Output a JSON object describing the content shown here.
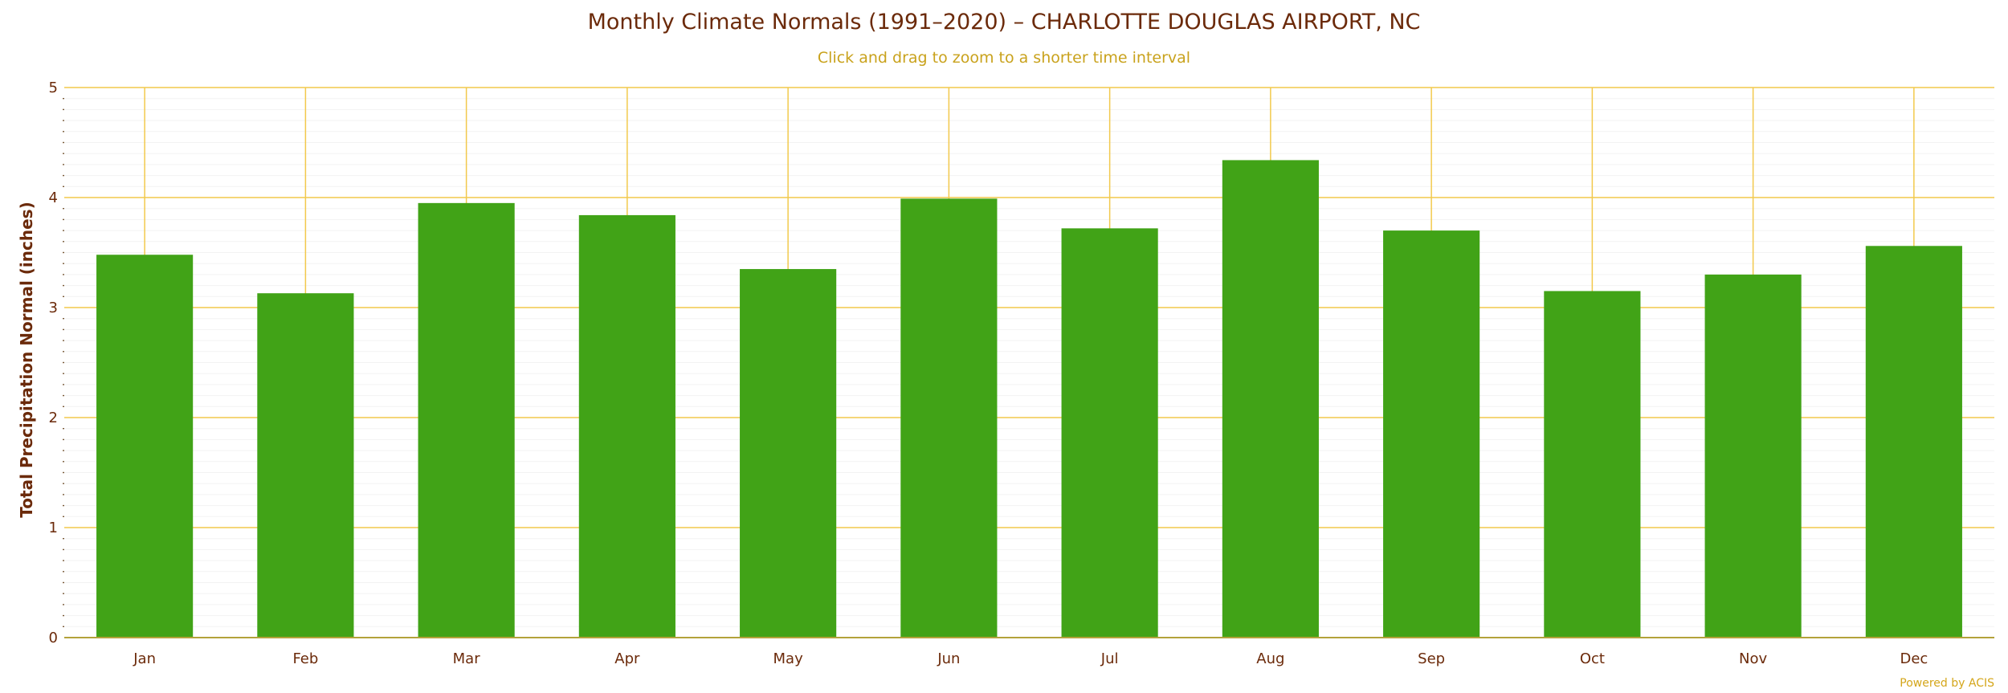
{
  "chart_data": {
    "type": "bar",
    "title": "Monthly Climate Normals (1991–2020) – CHARLOTTE DOUGLAS AIRPORT, NC",
    "subtitle": "Click and drag to zoom to a shorter time interval",
    "xlabel": "",
    "ylabel": "Total Precipitation Normal (inches)",
    "categories": [
      "Jan",
      "Feb",
      "Mar",
      "Apr",
      "May",
      "Jun",
      "Jul",
      "Aug",
      "Sep",
      "Oct",
      "Nov",
      "Dec"
    ],
    "values": [
      3.48,
      3.13,
      3.95,
      3.84,
      3.35,
      3.99,
      3.72,
      4.34,
      3.7,
      3.15,
      3.3,
      3.56
    ],
    "ylim": [
      0,
      5
    ],
    "yticks": [
      "0",
      "1",
      "2",
      "3",
      "4",
      "5"
    ],
    "grid": true,
    "legend": "none",
    "credit": "Powered by ACIS",
    "colors": {
      "bar": "#41a317",
      "grid": "#f2c94c",
      "minor_grid": "#f3f3f3",
      "axis_line": "#b3a23a",
      "title": "#6b2a0a",
      "subtitle": "#c9a21c",
      "credit": "#d4a61a"
    }
  }
}
